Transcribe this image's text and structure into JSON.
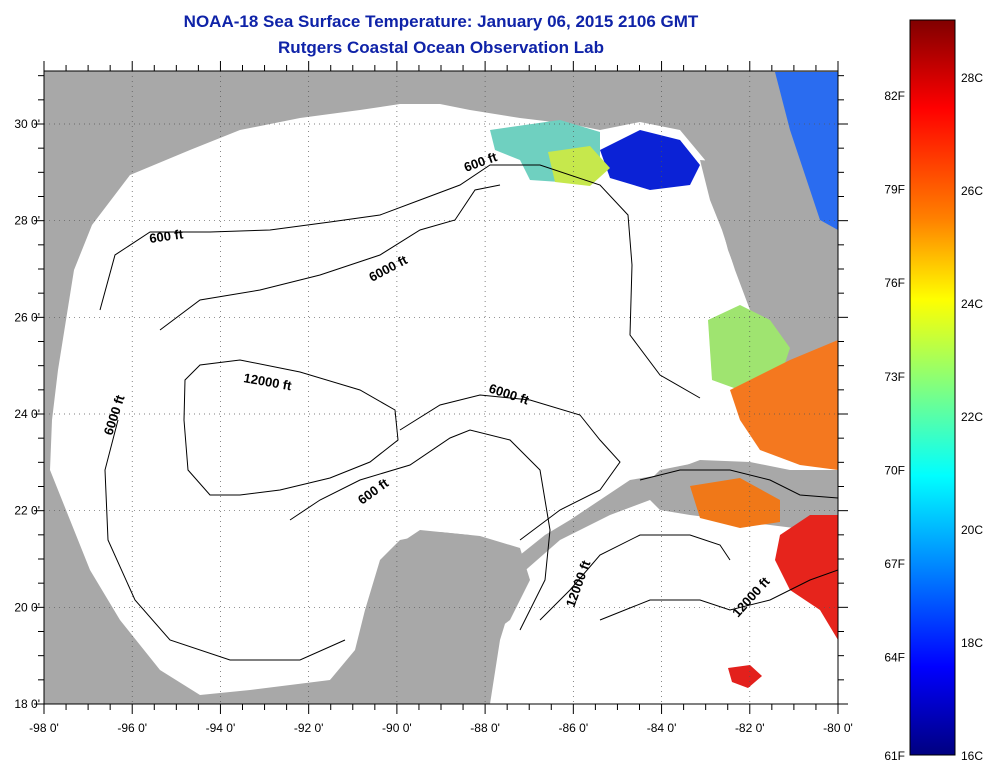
{
  "title": "NOAA-18 Sea Surface Temperature:  January 06, 2015 2106 GMT",
  "subtitle": "Rutgers Coastal Ocean Observation Lab",
  "lon_ticks": [
    "-98 0'",
    "-96 0'",
    "-94 0'",
    "-92 0'",
    "-90 0'",
    "-88 0'",
    "-86 0'",
    "-84 0'",
    "-82 0'",
    "-80 0'"
  ],
  "lat_ticks": [
    "30 0'",
    "28 0'",
    "26 0'",
    "24 0'",
    "22 0'",
    "20 0'",
    "18 0'"
  ],
  "contour_labels": {
    "c600_ne": "600 ft",
    "c600_nw": "600 ft",
    "c6000_n": "6000 ft",
    "c6000_w": "6000 ft",
    "c12000_c": "12000 ft",
    "c6000_e": "6000 ft",
    "c600_s": "600 ft",
    "c12000_se": "12000 ft",
    "c12000_ce": "12000 ft"
  },
  "colorbar": {
    "f_labels": [
      "82F",
      "79F",
      "76F",
      "73F",
      "70F",
      "67F",
      "64F",
      "61F"
    ],
    "c_labels": [
      "28C",
      "26C",
      "24C",
      "22C",
      "20C",
      "18C",
      "16C"
    ],
    "colors": [
      "#800000",
      "#ff0000",
      "#ff8000",
      "#ffff00",
      "#80ff80",
      "#00ffff",
      "#0080ff",
      "#0000ff",
      "#000080"
    ]
  },
  "colors": {
    "title": "#0f23a8",
    "land": "#a8a8a8"
  }
}
